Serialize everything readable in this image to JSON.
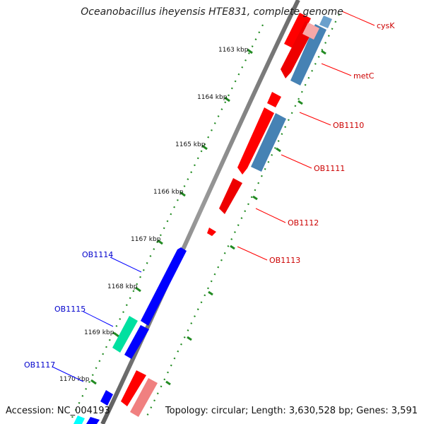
{
  "title": "Oceanobacillus iheyensis HTE831, complete genome",
  "accession": "Accession: NC_004193",
  "topology": "Topology: circular; Length: 3,630,528 bp; Genes: 3,591",
  "colors": {
    "forward_cds": "#ff0000",
    "forward_blue_track": "#4682b4",
    "reverse_cds": "#0000ff",
    "reverse_green": "#00e0a0",
    "reverse_cyan": "#00ffff",
    "pink_track": "#f08080",
    "backbone": "#808080",
    "tick": "#228b22",
    "forward_label": "#cc0000",
    "reverse_label": "#0000cc"
  },
  "ticks": [
    {
      "label": "1163 kbp"
    },
    {
      "label": "1164 kbp"
    },
    {
      "label": "1165 kbp"
    },
    {
      "label": "1166 kbp"
    },
    {
      "label": "1167 kbp"
    },
    {
      "label": "1168 kbp"
    },
    {
      "label": "1169 kbp"
    },
    {
      "label": "1170 kbp"
    }
  ],
  "forward_genes": [
    {
      "label": "cysK"
    },
    {
      "label": "metC"
    },
    {
      "label": "OB1110"
    },
    {
      "label": "OB1111"
    },
    {
      "label": "OB1112"
    },
    {
      "label": "OB1113"
    }
  ],
  "reverse_genes": [
    {
      "label": "OB1114"
    },
    {
      "label": "OB1115"
    },
    {
      "label": "OB1117"
    }
  ]
}
